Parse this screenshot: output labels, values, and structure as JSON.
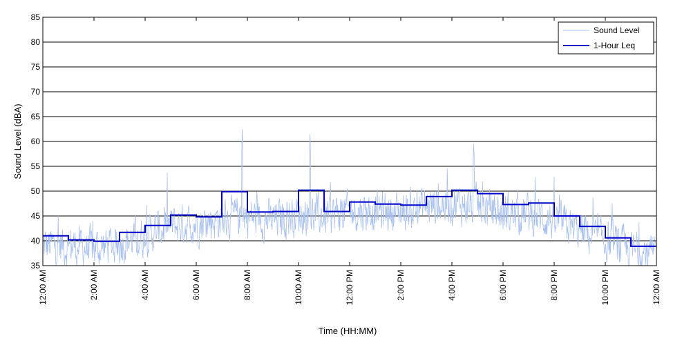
{
  "chart_data": {
    "type": "line",
    "xlabel": "Time (HH:MM)",
    "ylabel": "Sound Level (dBA)",
    "ylim": [
      35,
      85
    ],
    "y_ticks": [
      35,
      40,
      45,
      50,
      55,
      60,
      65,
      70,
      75,
      80,
      85
    ],
    "xlim_hours": [
      0,
      24
    ],
    "x_tick_labels": [
      "12:00 AM",
      "2:00 AM",
      "4:00 AM",
      "6:00 AM",
      "8:00 AM",
      "10:00 AM",
      "12:00 PM",
      "2:00 PM",
      "4:00 PM",
      "6:00 PM",
      "8:00 PM",
      "10:00 PM",
      "12:00 AM"
    ],
    "grid": "horizontal",
    "legend_position": "top-right",
    "series": [
      {
        "name": "Sound Level",
        "color": "#a8c0f0",
        "style": "thin-noisy",
        "envelope_hours": [
          0,
          1,
          2,
          3,
          4,
          5,
          6,
          7,
          8,
          9,
          10,
          11,
          12,
          13,
          14,
          15,
          16,
          17,
          18,
          19,
          20,
          21,
          22,
          23,
          24
        ],
        "envelope_mean": [
          39,
          39,
          38.5,
          39.5,
          41,
          43,
          43.5,
          44.5,
          45,
          44,
          45.5,
          45,
          46,
          46,
          46,
          47,
          47.5,
          47,
          45.5,
          45.5,
          44,
          42,
          40,
          38,
          37
        ],
        "peaks": [
          {
            "hour": 7.8,
            "value": 62.5
          },
          {
            "hour": 10.45,
            "value": 61.5
          },
          {
            "hour": 16.85,
            "value": 59.5
          }
        ]
      },
      {
        "name": "1-Hour Leq",
        "color": "#0000cc",
        "style": "step",
        "hours": [
          0,
          1,
          2,
          3,
          4,
          5,
          6,
          7,
          8,
          9,
          10,
          11,
          12,
          13,
          14,
          15,
          16,
          17,
          18,
          19,
          20,
          21,
          22,
          23
        ],
        "values": [
          41.0,
          40.2,
          39.9,
          41.7,
          43.1,
          45.2,
          44.8,
          49.9,
          45.8,
          45.9,
          50.2,
          45.9,
          47.8,
          47.4,
          47.2,
          48.9,
          50.2,
          49.5,
          47.3,
          47.6,
          45.0,
          42.9,
          40.6,
          38.9
        ]
      }
    ]
  }
}
